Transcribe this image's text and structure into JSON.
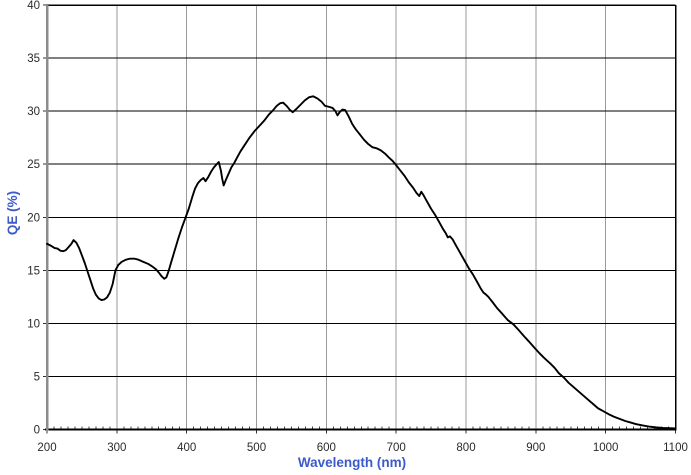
{
  "figure": {
    "background_color": "#ffffff",
    "axis_title_color": "#3c5ac8",
    "tick_label_color": "#2b2b2b",
    "curve_color": "#000000",
    "horizontal_gridline_color": "#000000",
    "vertical_gridline_color": "#9a9a9a",
    "left_axis_color": "#8c8c8c",
    "border_color": "#000000"
  },
  "chart_data": {
    "type": "line",
    "title": "",
    "xlabel": "Wavelength (nm)",
    "ylabel": "QE (%)",
    "xlim": [
      200,
      1100
    ],
    "ylim": [
      0,
      40
    ],
    "x_ticks": [
      200,
      300,
      400,
      500,
      600,
      700,
      800,
      900,
      1000,
      1100
    ],
    "y_ticks": [
      0,
      5,
      10,
      15,
      20,
      25,
      30,
      35,
      40
    ],
    "x_minor_tick_step": 10,
    "grid": {
      "horizontal": true,
      "vertical": true
    },
    "legend": "none",
    "series": [
      {
        "name": "QE curve",
        "points": [
          [
            200,
            17.5
          ],
          [
            206,
            17.3
          ],
          [
            211,
            17.1
          ],
          [
            215,
            17.05
          ],
          [
            219,
            16.85
          ],
          [
            223,
            16.8
          ],
          [
            227,
            16.9
          ],
          [
            231,
            17.2
          ],
          [
            235,
            17.5
          ],
          [
            238,
            17.85
          ],
          [
            242,
            17.6
          ],
          [
            246,
            17.1
          ],
          [
            250,
            16.4
          ],
          [
            254,
            15.7
          ],
          [
            258,
            14.9
          ],
          [
            262,
            14.1
          ],
          [
            266,
            13.3
          ],
          [
            270,
            12.7
          ],
          [
            274,
            12.35
          ],
          [
            278,
            12.2
          ],
          [
            282,
            12.25
          ],
          [
            286,
            12.45
          ],
          [
            290,
            12.9
          ],
          [
            294,
            13.7
          ],
          [
            298,
            15.0
          ],
          [
            302,
            15.5
          ],
          [
            307,
            15.8
          ],
          [
            313,
            16.0
          ],
          [
            319,
            16.1
          ],
          [
            325,
            16.1
          ],
          [
            331,
            16.0
          ],
          [
            338,
            15.8
          ],
          [
            345,
            15.6
          ],
          [
            351,
            15.35
          ],
          [
            356,
            15.1
          ],
          [
            360,
            14.8
          ],
          [
            364,
            14.45
          ],
          [
            368,
            14.2
          ],
          [
            371,
            14.35
          ],
          [
            374,
            14.9
          ],
          [
            378,
            15.8
          ],
          [
            383,
            16.9
          ],
          [
            388,
            18.0
          ],
          [
            393,
            19.0
          ],
          [
            398,
            19.9
          ],
          [
            403,
            20.8
          ],
          [
            408,
            21.9
          ],
          [
            412,
            22.7
          ],
          [
            416,
            23.2
          ],
          [
            420,
            23.5
          ],
          [
            424,
            23.7
          ],
          [
            427,
            23.4
          ],
          [
            431,
            23.8
          ],
          [
            435,
            24.3
          ],
          [
            439,
            24.7
          ],
          [
            443,
            25.0
          ],
          [
            446,
            25.2
          ],
          [
            449,
            24.4
          ],
          [
            451,
            23.6
          ],
          [
            453,
            23.0
          ],
          [
            456,
            23.5
          ],
          [
            460,
            24.1
          ],
          [
            464,
            24.7
          ],
          [
            468,
            25.1
          ],
          [
            472,
            25.6
          ],
          [
            477,
            26.2
          ],
          [
            483,
            26.8
          ],
          [
            490,
            27.5
          ],
          [
            497,
            28.1
          ],
          [
            504,
            28.6
          ],
          [
            511,
            29.1
          ],
          [
            518,
            29.7
          ],
          [
            524,
            30.1
          ],
          [
            529,
            30.5
          ],
          [
            534,
            30.75
          ],
          [
            538,
            30.8
          ],
          [
            543,
            30.5
          ],
          [
            548,
            30.1
          ],
          [
            552,
            29.9
          ],
          [
            557,
            30.2
          ],
          [
            563,
            30.6
          ],
          [
            569,
            31.0
          ],
          [
            575,
            31.3
          ],
          [
            581,
            31.4
          ],
          [
            587,
            31.2
          ],
          [
            593,
            30.9
          ],
          [
            598,
            30.5
          ],
          [
            604,
            30.4
          ],
          [
            609,
            30.3
          ],
          [
            613,
            30.0
          ],
          [
            616,
            29.6
          ],
          [
            619,
            29.9
          ],
          [
            623,
            30.15
          ],
          [
            627,
            30.1
          ],
          [
            632,
            29.5
          ],
          [
            637,
            28.8
          ],
          [
            642,
            28.3
          ],
          [
            648,
            27.8
          ],
          [
            654,
            27.3
          ],
          [
            660,
            26.9
          ],
          [
            666,
            26.6
          ],
          [
            672,
            26.5
          ],
          [
            678,
            26.3
          ],
          [
            684,
            26.0
          ],
          [
            690,
            25.6
          ],
          [
            695,
            25.3
          ],
          [
            700,
            24.9
          ],
          [
            706,
            24.4
          ],
          [
            712,
            23.9
          ],
          [
            718,
            23.3
          ],
          [
            724,
            22.8
          ],
          [
            729,
            22.3
          ],
          [
            733,
            22.0
          ],
          [
            736,
            22.4
          ],
          [
            739,
            22.1
          ],
          [
            744,
            21.5
          ],
          [
            750,
            20.8
          ],
          [
            756,
            20.2
          ],
          [
            762,
            19.5
          ],
          [
            767,
            18.9
          ],
          [
            771,
            18.5
          ],
          [
            774,
            18.1
          ],
          [
            777,
            18.2
          ],
          [
            781,
            17.9
          ],
          [
            786,
            17.3
          ],
          [
            792,
            16.6
          ],
          [
            798,
            15.9
          ],
          [
            804,
            15.2
          ],
          [
            810,
            14.6
          ],
          [
            816,
            13.9
          ],
          [
            821,
            13.3
          ],
          [
            825,
            12.9
          ],
          [
            828,
            12.75
          ],
          [
            832,
            12.5
          ],
          [
            838,
            12.0
          ],
          [
            845,
            11.4
          ],
          [
            852,
            10.9
          ],
          [
            860,
            10.3
          ],
          [
            868,
            9.9
          ],
          [
            875,
            9.4
          ],
          [
            883,
            8.8
          ],
          [
            890,
            8.3
          ],
          [
            898,
            7.7
          ],
          [
            905,
            7.2
          ],
          [
            911,
            6.8
          ],
          [
            916,
            6.5
          ],
          [
            921,
            6.2
          ],
          [
            927,
            5.8
          ],
          [
            933,
            5.3
          ],
          [
            940,
            4.9
          ],
          [
            947,
            4.4
          ],
          [
            954,
            4.0
          ],
          [
            961,
            3.6
          ],
          [
            968,
            3.2
          ],
          [
            975,
            2.8
          ],
          [
            982,
            2.4
          ],
          [
            989,
            2.0
          ],
          [
            996,
            1.75
          ],
          [
            1004,
            1.45
          ],
          [
            1012,
            1.2
          ],
          [
            1020,
            1.0
          ],
          [
            1028,
            0.8
          ],
          [
            1036,
            0.65
          ],
          [
            1044,
            0.5
          ],
          [
            1053,
            0.38
          ],
          [
            1062,
            0.28
          ],
          [
            1072,
            0.2
          ],
          [
            1082,
            0.15
          ],
          [
            1092,
            0.12
          ],
          [
            1100,
            0.1
          ]
        ]
      }
    ]
  }
}
